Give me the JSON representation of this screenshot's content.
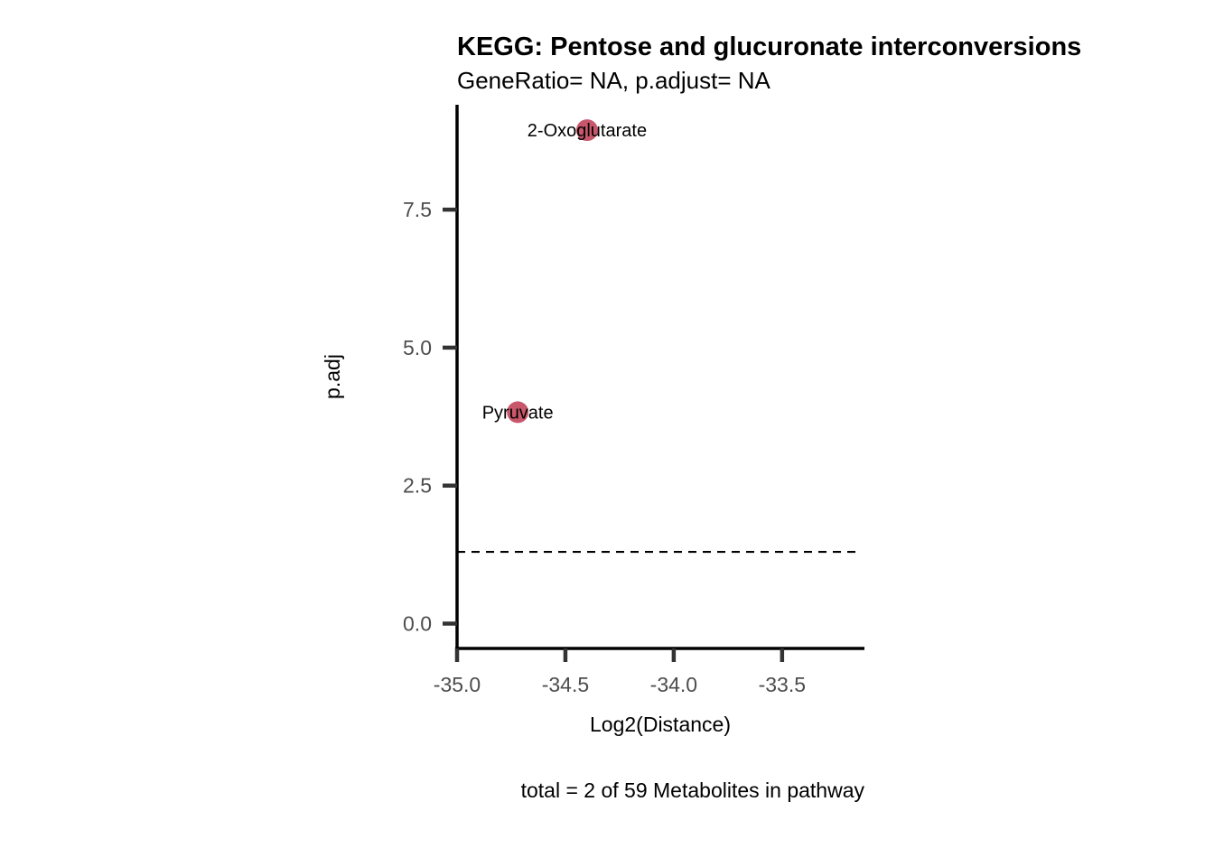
{
  "chart_data": {
    "type": "scatter",
    "title": "KEGG: Pentose and glucuronate interconversions",
    "subtitle": "GeneRatio= NA, p.adjust= NA",
    "xlabel": "Log2(Distance)",
    "ylabel": "p.adj",
    "caption": "total = 2 of 59 Metabolites in pathway",
    "xlim": [
      -35.0,
      -33.12
    ],
    "ylim": [
      -0.45,
      9.4
    ],
    "x_ticks": [
      -35.0,
      -34.5,
      -34.0,
      -33.5
    ],
    "x_tick_labels": [
      "-35.0",
      "-34.5",
      "-34.0",
      "-33.5"
    ],
    "y_ticks": [
      0.0,
      2.5,
      5.0,
      7.5
    ],
    "y_tick_labels": [
      "0.0",
      "2.5",
      "5.0",
      "7.5"
    ],
    "threshold_line": {
      "y": 1.3,
      "style": "dashed"
    },
    "point_color": "#c8576b",
    "points": [
      {
        "label": "2-Oxoglutarate",
        "x": -34.4,
        "y": 8.94
      },
      {
        "label": "Pyruvate",
        "x": -34.72,
        "y": 3.83
      }
    ],
    "grid": false,
    "legend": "none"
  }
}
